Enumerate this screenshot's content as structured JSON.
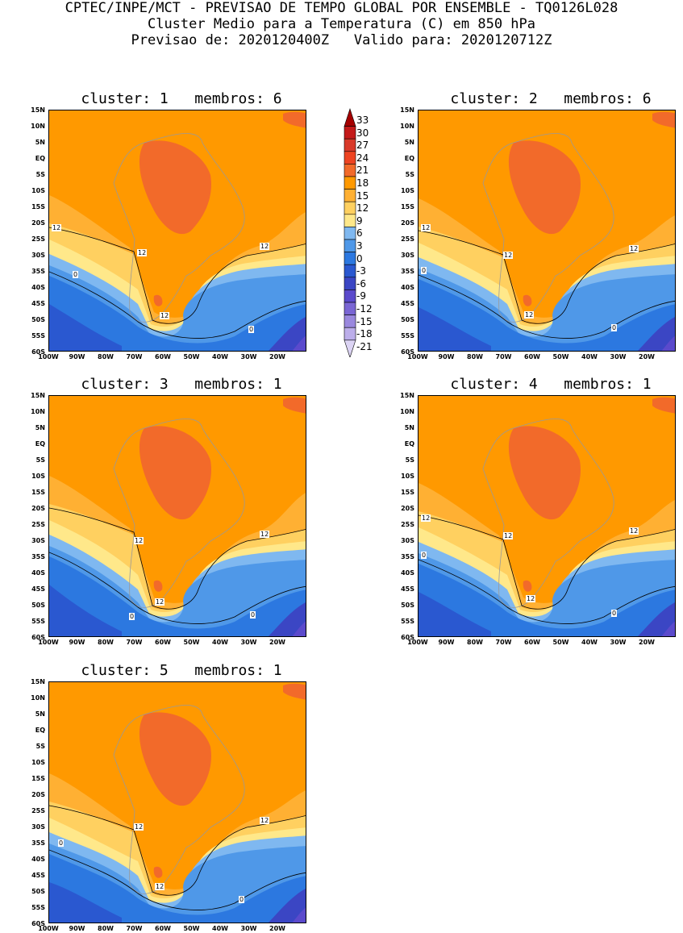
{
  "header": {
    "line1": "CPTEC/INPE/MCT - PREVISAO DE TEMPO GLOBAL POR ENSEMBLE - TQ0126L028",
    "line2": "Cluster Medio para a Temperatura (C) em 850 hPa",
    "line3": "Previsao de: 2020120400Z   Valido para: 2020120712Z"
  },
  "axes": {
    "lat_ticks": [
      "15N",
      "10N",
      "5N",
      "EQ",
      "5S",
      "10S",
      "15S",
      "20S",
      "25S",
      "30S",
      "35S",
      "40S",
      "45S",
      "50S",
      "55S",
      "60S"
    ],
    "lon_ticks": [
      "100W",
      "90W",
      "80W",
      "70W",
      "60W",
      "50W",
      "40W",
      "30W",
      "20W"
    ]
  },
  "colorbar": {
    "levels": [
      "33",
      "30",
      "27",
      "24",
      "21",
      "18",
      "15",
      "12",
      "9",
      "6",
      "3",
      "0",
      "-3",
      "-6",
      "-9",
      "-12",
      "-15",
      "-18",
      "-21"
    ],
    "colors": [
      "#a50000",
      "#c41a1a",
      "#d93a2a",
      "#ee4422",
      "#f26a2a",
      "#ff9900",
      "#ffb033",
      "#ffd060",
      "#ffe88a",
      "#7fb8f0",
      "#4f98e8",
      "#2c78e0",
      "#2a58d0",
      "#3b46c4",
      "#5b4acc",
      "#7a66d4",
      "#9a88de",
      "#bcaeea",
      "#dcd4f4"
    ]
  },
  "clusters": [
    {
      "title": "cluster: 1   membros: 6",
      "labels": [
        "12",
        "12",
        "12",
        "0",
        "12",
        "0"
      ]
    },
    {
      "title": "cluster: 2   membros: 6",
      "labels": [
        "12",
        "12",
        "12",
        "0",
        "12",
        "0"
      ]
    },
    {
      "title": "cluster: 3   membros: 1",
      "labels": [
        "12",
        "12",
        "12",
        "0",
        "0"
      ]
    },
    {
      "title": "cluster: 4   membros: 1",
      "labels": [
        "12",
        "12",
        "12",
        "0",
        "12",
        "0"
      ]
    },
    {
      "title": "cluster: 5   membros: 1",
      "labels": [
        "12",
        "12",
        "0",
        "12",
        "0"
      ]
    }
  ]
}
